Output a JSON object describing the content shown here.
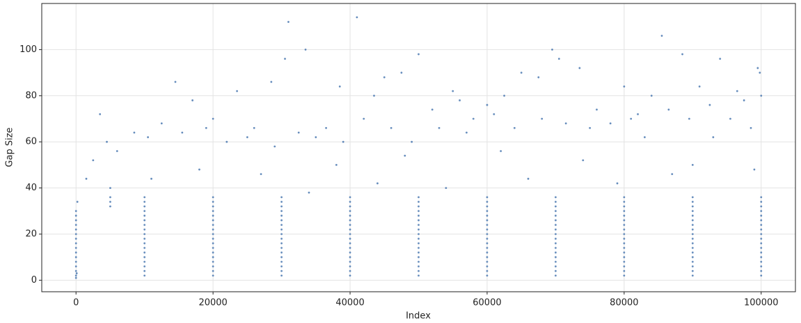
{
  "chart_data": {
    "type": "scatter",
    "xlabel": "Index",
    "ylabel": "Gap Size",
    "color": "#4a78b0",
    "grid": true,
    "xlim": [
      -5000,
      105000
    ],
    "ylim": [
      -5,
      120
    ],
    "xticks": [
      0,
      20000,
      40000,
      60000,
      80000,
      100000
    ],
    "yticks": [
      0,
      20,
      40,
      60,
      80,
      100
    ],
    "x": [
      0,
      10000,
      20000,
      30000,
      40000,
      50000,
      60000,
      70000,
      80000,
      90000,
      100000,
      0,
      10000,
      20000,
      30000,
      40000,
      50000,
      60000,
      70000,
      80000,
      90000,
      100000,
      0,
      10000,
      20000,
      30000,
      40000,
      50000,
      60000,
      70000,
      80000,
      90000,
      100000,
      0,
      10000,
      20000,
      30000,
      40000,
      50000,
      60000,
      70000,
      80000,
      90000,
      100000,
      0,
      10000,
      20000,
      30000,
      40000,
      50000,
      60000,
      70000,
      80000,
      90000,
      100000,
      0,
      10000,
      20000,
      30000,
      40000,
      50000,
      60000,
      70000,
      80000,
      90000,
      100000,
      0,
      10000,
      20000,
      30000,
      40000,
      50000,
      60000,
      70000,
      80000,
      90000,
      100000,
      0,
      10000,
      20000,
      30000,
      40000,
      50000,
      60000,
      70000,
      80000,
      90000,
      100000,
      0,
      10000,
      20000,
      30000,
      40000,
      50000,
      60000,
      70000,
      80000,
      90000,
      100000,
      0,
      10000,
      20000,
      30000,
      40000,
      50000,
      60000,
      70000,
      80000,
      90000,
      100000,
      0,
      10000,
      20000,
      30000,
      40000,
      50000,
      60000,
      70000,
      80000,
      90000,
      100000,
      0,
      10000,
      20000,
      30000,
      40000,
      50000,
      60000,
      70000,
      80000,
      90000,
      100000,
      0,
      10000,
      20000,
      30000,
      40000,
      50000,
      60000,
      70000,
      80000,
      90000,
      100000,
      0,
      10000,
      20000,
      30000,
      40000,
      50000,
      60000,
      70000,
      80000,
      90000,
      100000,
      0,
      10000,
      20000,
      30000,
      40000,
      50000,
      60000,
      70000,
      80000,
      90000,
      100000,
      5000,
      10000,
      20000,
      30000,
      40000,
      50000,
      60000,
      70000,
      80000,
      90000,
      100000,
      5000,
      10000,
      20000,
      30000,
      40000,
      50000,
      60000,
      70000,
      80000,
      90000,
      100000,
      5000,
      10000,
      20000,
      30000,
      40000,
      50000,
      60000,
      70000,
      80000,
      90000,
      100000,
      3500,
      14500,
      31000,
      33500,
      41000,
      50000,
      30500,
      28500,
      38500,
      45000,
      47500,
      69500,
      73500,
      85500,
      88500,
      94000,
      99500,
      99800,
      100000,
      62500,
      55000,
      65000,
      70500,
      80000,
      91000,
      56000,
      43500,
      23500,
      17000,
      20000,
      8500,
      4500,
      12500,
      26000,
      36500,
      52000,
      58000,
      76000,
      82000,
      96500,
      60000,
      67500,
      84000,
      92500,
      97500,
      1500,
      2500,
      6000,
      10500,
      15500,
      19000,
      22000,
      25000,
      29000,
      32500,
      35000,
      39000,
      42000,
      46000,
      49000,
      53000,
      57000,
      61000,
      64000,
      68000,
      71500,
      75000,
      78000,
      81000,
      83000,
      86500,
      89500,
      93000,
      95500,
      98500,
      38000,
      48000,
      18000,
      62000,
      74000,
      90000,
      5000,
      11000,
      27000,
      44000,
      66000,
      87000,
      99000,
      34000,
      54000,
      79000,
      0,
      100,
      200
    ],
    "values": [
      2,
      2,
      2,
      2,
      2,
      2,
      2,
      2,
      2,
      2,
      2,
      4,
      4,
      4,
      4,
      4,
      4,
      4,
      4,
      4,
      4,
      4,
      6,
      6,
      6,
      6,
      6,
      6,
      6,
      6,
      6,
      6,
      6,
      8,
      8,
      8,
      8,
      8,
      8,
      8,
      8,
      8,
      8,
      8,
      10,
      10,
      10,
      10,
      10,
      10,
      10,
      10,
      10,
      10,
      10,
      12,
      12,
      12,
      12,
      12,
      12,
      12,
      12,
      12,
      12,
      12,
      14,
      14,
      14,
      14,
      14,
      14,
      14,
      14,
      14,
      14,
      14,
      16,
      16,
      16,
      16,
      16,
      16,
      16,
      16,
      16,
      16,
      16,
      18,
      18,
      18,
      18,
      18,
      18,
      18,
      18,
      18,
      18,
      18,
      20,
      20,
      20,
      20,
      20,
      20,
      20,
      20,
      20,
      20,
      20,
      22,
      22,
      22,
      22,
      22,
      22,
      22,
      22,
      22,
      22,
      22,
      24,
      24,
      24,
      24,
      24,
      24,
      24,
      24,
      24,
      24,
      24,
      26,
      26,
      26,
      26,
      26,
      26,
      26,
      26,
      26,
      26,
      26,
      28,
      28,
      28,
      28,
      28,
      28,
      28,
      28,
      28,
      28,
      28,
      30,
      30,
      30,
      30,
      30,
      30,
      30,
      30,
      30,
      30,
      30,
      32,
      32,
      32,
      32,
      32,
      32,
      32,
      32,
      32,
      32,
      32,
      34,
      34,
      34,
      34,
      34,
      34,
      34,
      34,
      34,
      34,
      34,
      36,
      36,
      36,
      36,
      36,
      36,
      36,
      36,
      36,
      36,
      36,
      72,
      86,
      112,
      100,
      114,
      98,
      96,
      86,
      84,
      88,
      90,
      100,
      92,
      106,
      98,
      96,
      92,
      90,
      80,
      80,
      82,
      90,
      96,
      84,
      84,
      78,
      80,
      82,
      78,
      70,
      64,
      60,
      68,
      66,
      66,
      74,
      70,
      74,
      72,
      82,
      76,
      88,
      80,
      76,
      78,
      44,
      52,
      56,
      62,
      64,
      66,
      60,
      62,
      58,
      64,
      62,
      60,
      70,
      66,
      60,
      66,
      64,
      72,
      66,
      70,
      68,
      66,
      68,
      70,
      62,
      74,
      70,
      62,
      70,
      66,
      50,
      54,
      48,
      56,
      52,
      50,
      40,
      44,
      46,
      42,
      44,
      46,
      48,
      38,
      40,
      42,
      1,
      3,
      34
    ]
  }
}
